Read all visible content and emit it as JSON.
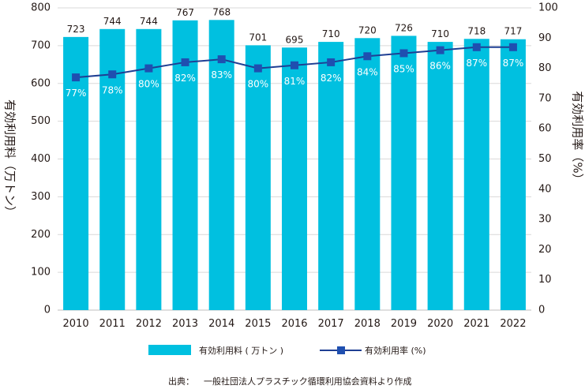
{
  "chart_data": {
    "type": "bar",
    "categories": [
      "2010",
      "2011",
      "2012",
      "2013",
      "2014",
      "2015",
      "2016",
      "2017",
      "2018",
      "2019",
      "2020",
      "2021",
      "2022"
    ],
    "series": [
      {
        "name": "有効利用料（万トン）",
        "type": "bar",
        "axis": "left",
        "color": "#00c0e0",
        "values": [
          723,
          744,
          744,
          767,
          768,
          701,
          695,
          710,
          720,
          726,
          710,
          718,
          717
        ],
        "data_labels": [
          "723",
          "744",
          "744",
          "767",
          "768",
          "701",
          "695",
          "710",
          "720",
          "726",
          "710",
          "718",
          "717"
        ]
      },
      {
        "name": "有効利用率（%）",
        "type": "line",
        "axis": "right",
        "color": "#1f3f93",
        "marker_color": "#1f4fb0",
        "values": [
          77,
          78,
          80,
          82,
          83,
          80,
          81,
          82,
          84,
          85,
          86,
          87,
          87
        ],
        "data_labels": [
          "77%",
          "78%",
          "80%",
          "82%",
          "83%",
          "80%",
          "81%",
          "82%",
          "84%",
          "85%",
          "86%",
          "87%",
          "87%"
        ]
      }
    ],
    "ylabel": "有効利用料（万トン）",
    "y2label": "有効利用率（%）",
    "ylim": [
      0,
      800
    ],
    "y2lim": [
      0,
      100
    ],
    "yticks": [
      0,
      100,
      200,
      300,
      400,
      500,
      600,
      700,
      800
    ],
    "y2ticks": [
      0,
      10,
      20,
      30,
      40,
      50,
      60,
      70,
      80,
      90,
      100
    ],
    "grid": true,
    "grid_color": "#d9d9d9",
    "legend": {
      "placement": "bottom",
      "entries": [
        "有効利用料 ( 万トン )",
        "有効利用率 (%)"
      ]
    },
    "source": {
      "label": "出典：",
      "text": "一般社団法人プラスチック循環利用協会資料より作成"
    }
  }
}
